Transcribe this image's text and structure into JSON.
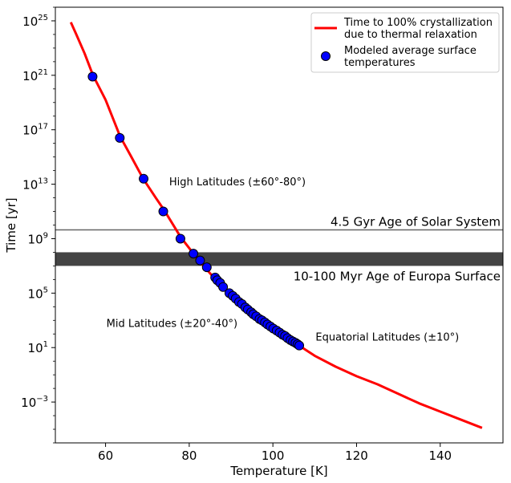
{
  "chart_data": {
    "type": "scatter",
    "xlabel": "Temperature [K]",
    "ylabel": "Time [yr]",
    "xlim": [
      48,
      155
    ],
    "ylim_log10": [
      -6,
      26
    ],
    "yscale": "log",
    "xticks": [
      60,
      80,
      100,
      120,
      140
    ],
    "yticks": [
      {
        "base": "10",
        "exp": "25",
        "log": 25
      },
      {
        "base": "10",
        "exp": "21",
        "log": 21
      },
      {
        "base": "10",
        "exp": "17",
        "log": 17
      },
      {
        "base": "10",
        "exp": "13",
        "log": 13
      },
      {
        "base": "10",
        "exp": "9",
        "log": 9
      },
      {
        "base": "10",
        "exp": "5",
        "log": 5
      },
      {
        "base": "10",
        "exp": "1",
        "log": 1
      },
      {
        "base": "10",
        "exp": "−3",
        "log": -3
      }
    ],
    "legend": {
      "position": "top-right",
      "line_label_1": "Time to 100% crystallization",
      "line_label_2": "due to thermal relaxation",
      "points_label_1": "Modeled average surface",
      "points_label_2": "temperatures"
    },
    "curve": {
      "name": "Time to 100% crystallization due to thermal relaxation",
      "color": "#ff0000",
      "points": [
        [
          51.7,
          24.9
        ],
        [
          53,
          24.0
        ],
        [
          55,
          22.6
        ],
        [
          57,
          21.0
        ],
        [
          60,
          19.2
        ],
        [
          63.5,
          16.5
        ],
        [
          66,
          15.1
        ],
        [
          69,
          13.4
        ],
        [
          72,
          12.0
        ],
        [
          74,
          11.1
        ],
        [
          76,
          10.1
        ],
        [
          78,
          9.1
        ],
        [
          80,
          8.3
        ],
        [
          82,
          7.5
        ],
        [
          84,
          6.8
        ],
        [
          86,
          6.1
        ],
        [
          88,
          5.5
        ],
        [
          90,
          4.9
        ],
        [
          92,
          4.3
        ],
        [
          94,
          3.8
        ],
        [
          96,
          3.3
        ],
        [
          98,
          2.8
        ],
        [
          100,
          2.4
        ],
        [
          102,
          2.0
        ],
        [
          104,
          1.6
        ],
        [
          106,
          1.2
        ],
        [
          108,
          0.8
        ],
        [
          110,
          0.4
        ],
        [
          115,
          -0.4
        ],
        [
          120,
          -1.1
        ],
        [
          125,
          -1.7
        ],
        [
          130,
          -2.4
        ],
        [
          135,
          -3.1
        ],
        [
          140,
          -3.7
        ],
        [
          145,
          -4.3
        ],
        [
          150,
          -4.9
        ]
      ]
    },
    "points_series": {
      "name": "Modeled average surface temperatures",
      "color": "#0000ff",
      "points": [
        [
          56.9,
          20.9
        ],
        [
          63.4,
          16.4
        ],
        [
          69.1,
          13.4
        ],
        [
          73.8,
          11.0
        ],
        [
          77.9,
          9.0
        ],
        [
          81.0,
          7.9
        ],
        [
          82.6,
          7.4
        ],
        [
          84.2,
          6.9
        ],
        [
          86.2,
          6.15
        ],
        [
          86.7,
          5.95
        ],
        [
          87.4,
          5.75
        ],
        [
          88.1,
          5.45
        ],
        [
          89.6,
          5.0
        ],
        [
          90.4,
          4.8
        ],
        [
          91.1,
          4.6
        ],
        [
          91.9,
          4.35
        ],
        [
          92.6,
          4.2
        ],
        [
          93.4,
          3.95
        ],
        [
          94.0,
          3.8
        ],
        [
          94.8,
          3.6
        ],
        [
          95.3,
          3.45
        ],
        [
          96.0,
          3.3
        ],
        [
          96.8,
          3.1
        ],
        [
          97.4,
          3.0
        ],
        [
          98.1,
          2.85
        ],
        [
          98.7,
          2.7
        ],
        [
          99.4,
          2.55
        ],
        [
          100.1,
          2.4
        ],
        [
          100.9,
          2.25
        ],
        [
          101.6,
          2.1
        ],
        [
          102.3,
          1.95
        ],
        [
          102.9,
          1.85
        ],
        [
          103.5,
          1.7
        ],
        [
          104.2,
          1.55
        ],
        [
          104.8,
          1.45
        ],
        [
          105.4,
          1.35
        ],
        [
          105.9,
          1.25
        ],
        [
          106.3,
          1.15
        ]
      ]
    },
    "hlines": [
      {
        "label": "4.5 Gyr Age of Solar System",
        "log": 9.65,
        "color": "#666666",
        "label_pos": "above-right"
      }
    ],
    "bands": [
      {
        "label": "10-100 Myr Age of Europa Surface",
        "log_low": 7.0,
        "log_high": 8.0,
        "color": "#444444",
        "label_pos": "below-right"
      }
    ],
    "annotations": [
      {
        "text": "High Latitudes (±60°-80°)",
        "x": 75.2,
        "ylog": 13.2
      },
      {
        "text": "Mid Latitudes (±20°-40°)",
        "x": 60.2,
        "ylog": 2.8
      },
      {
        "text": "Equatorial Latitudes (±10°)",
        "x": 110.2,
        "ylog": 1.8
      }
    ]
  }
}
